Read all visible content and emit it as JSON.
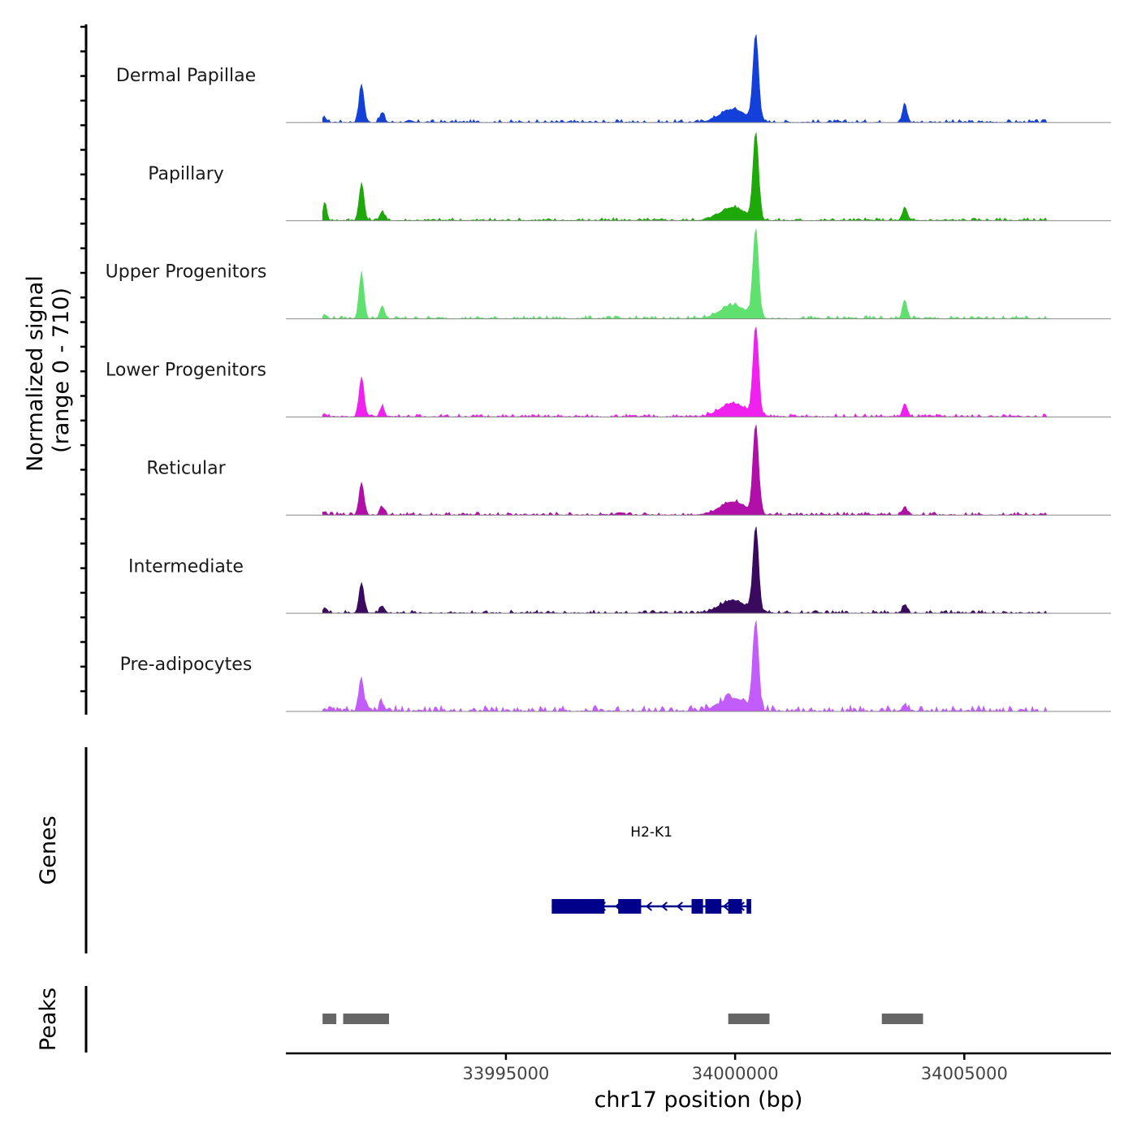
{
  "chart_data": {
    "type": "area",
    "title": "",
    "ylabel_line1": "Normalized signal",
    "ylabel_line2": "(range 0 - 710)",
    "ylim": [
      0,
      710
    ],
    "xlabel": "chr17 position (bp)",
    "xlim": [
      33990200,
      34008200
    ],
    "x_ticks": [
      33995000,
      34000000,
      34005000
    ],
    "x_tick_labels": [
      "33995000",
      "34000000",
      "34005000"
    ],
    "peak_centers": [
      33991850,
      34000450,
      34003700
    ],
    "series": [
      {
        "name": "Dermal Papillae",
        "color": "#1240d8",
        "heights": [
          0.42,
          0.95,
          0.2
        ],
        "noise": 0.035,
        "left_bump": 0.05
      },
      {
        "name": "Papillary",
        "color": "#1ea80a",
        "heights": [
          0.41,
          0.95,
          0.14
        ],
        "noise": 0.035,
        "left_bump": 0.19
      },
      {
        "name": "Upper Progenitors",
        "color": "#5fe06f",
        "heights": [
          0.5,
          0.97,
          0.2
        ],
        "noise": 0.035,
        "left_bump": 0.04
      },
      {
        "name": "Lower Progenitors",
        "color": "#f020ee",
        "heights": [
          0.44,
          0.97,
          0.14
        ],
        "noise": 0.035,
        "left_bump": 0.03
      },
      {
        "name": "Reticular",
        "color": "#b00fa8",
        "heights": [
          0.36,
          0.97,
          0.09
        ],
        "noise": 0.035,
        "left_bump": 0.03
      },
      {
        "name": "Intermediate",
        "color": "#390a5e",
        "heights": [
          0.33,
          0.93,
          0.09
        ],
        "noise": 0.035,
        "left_bump": 0.06
      },
      {
        "name": "Pre-adipocytes",
        "color": "#c25cfa",
        "heights": [
          0.34,
          0.97,
          0.07
        ],
        "noise": 0.07,
        "left_bump": 0.03
      }
    ],
    "genes": {
      "label": "Genes",
      "items": [
        {
          "name": "H2-K1",
          "start": 33996000,
          "end": 34000350,
          "strand": "-",
          "exons": [
            [
              33996000,
              33997150
            ],
            [
              33997450,
              33997950
            ],
            [
              33999050,
              33999300
            ],
            [
              33999350,
              33999700
            ],
            [
              33999850,
              34000150
            ],
            [
              34000250,
              34000350
            ]
          ]
        }
      ]
    },
    "peaks": {
      "label": "Peaks",
      "regions": [
        [
          33991000,
          33991300
        ],
        [
          33991450,
          33992450
        ],
        [
          33999850,
          34000750
        ],
        [
          34003200,
          34004100
        ]
      ]
    }
  }
}
